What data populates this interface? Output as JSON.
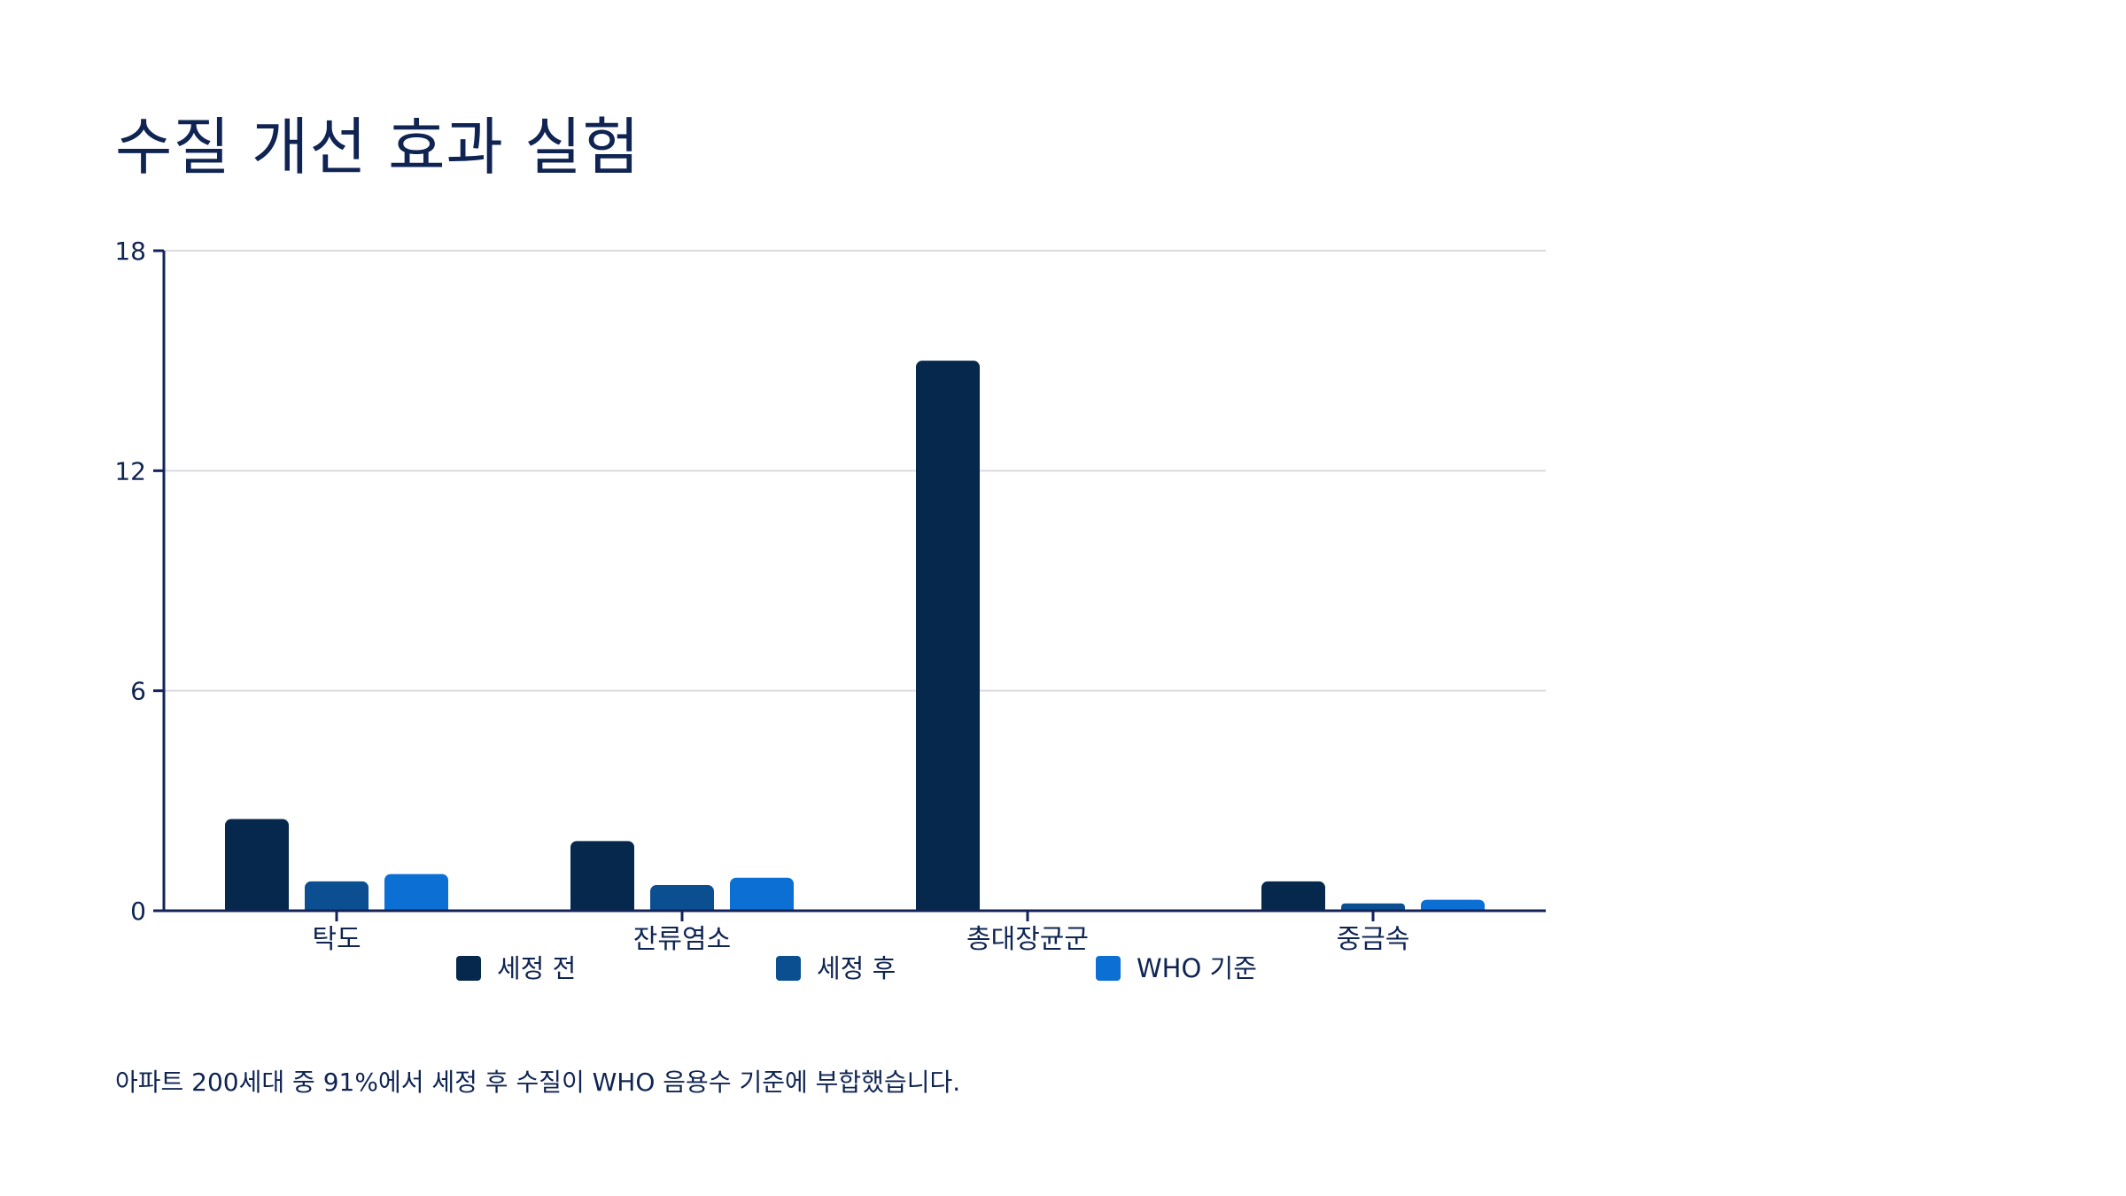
{
  "title": "수질 개선 효과 실험",
  "footnote": "아파트 200세대 중 91%에서 세정 후 수질이 WHO 음용수 기준에 부합했습니다.",
  "colors": {
    "text": "#0f2452",
    "grid": "#d9dbe0",
    "axis": "#13235a",
    "series": [
      "#06284d",
      "#0b4f91",
      "#0b6fd4"
    ]
  },
  "chart_data": {
    "type": "bar",
    "categories": [
      "탁도",
      "잔류염소",
      "총대장균군",
      "중금속"
    ],
    "series": [
      {
        "name": "세정 전",
        "values": [
          2.5,
          1.9,
          15.0,
          0.8
        ]
      },
      {
        "name": "세정 후",
        "values": [
          0.8,
          0.7,
          0.0,
          0.2
        ]
      },
      {
        "name": "WHO 기준",
        "values": [
          1.0,
          0.9,
          0.0,
          0.3
        ]
      }
    ],
    "y_ticks": [
      "0",
      "6",
      "12",
      "18"
    ],
    "ylim": [
      0,
      18
    ],
    "grid": true,
    "legend_position": "bottom",
    "xlabel": "",
    "ylabel": ""
  }
}
